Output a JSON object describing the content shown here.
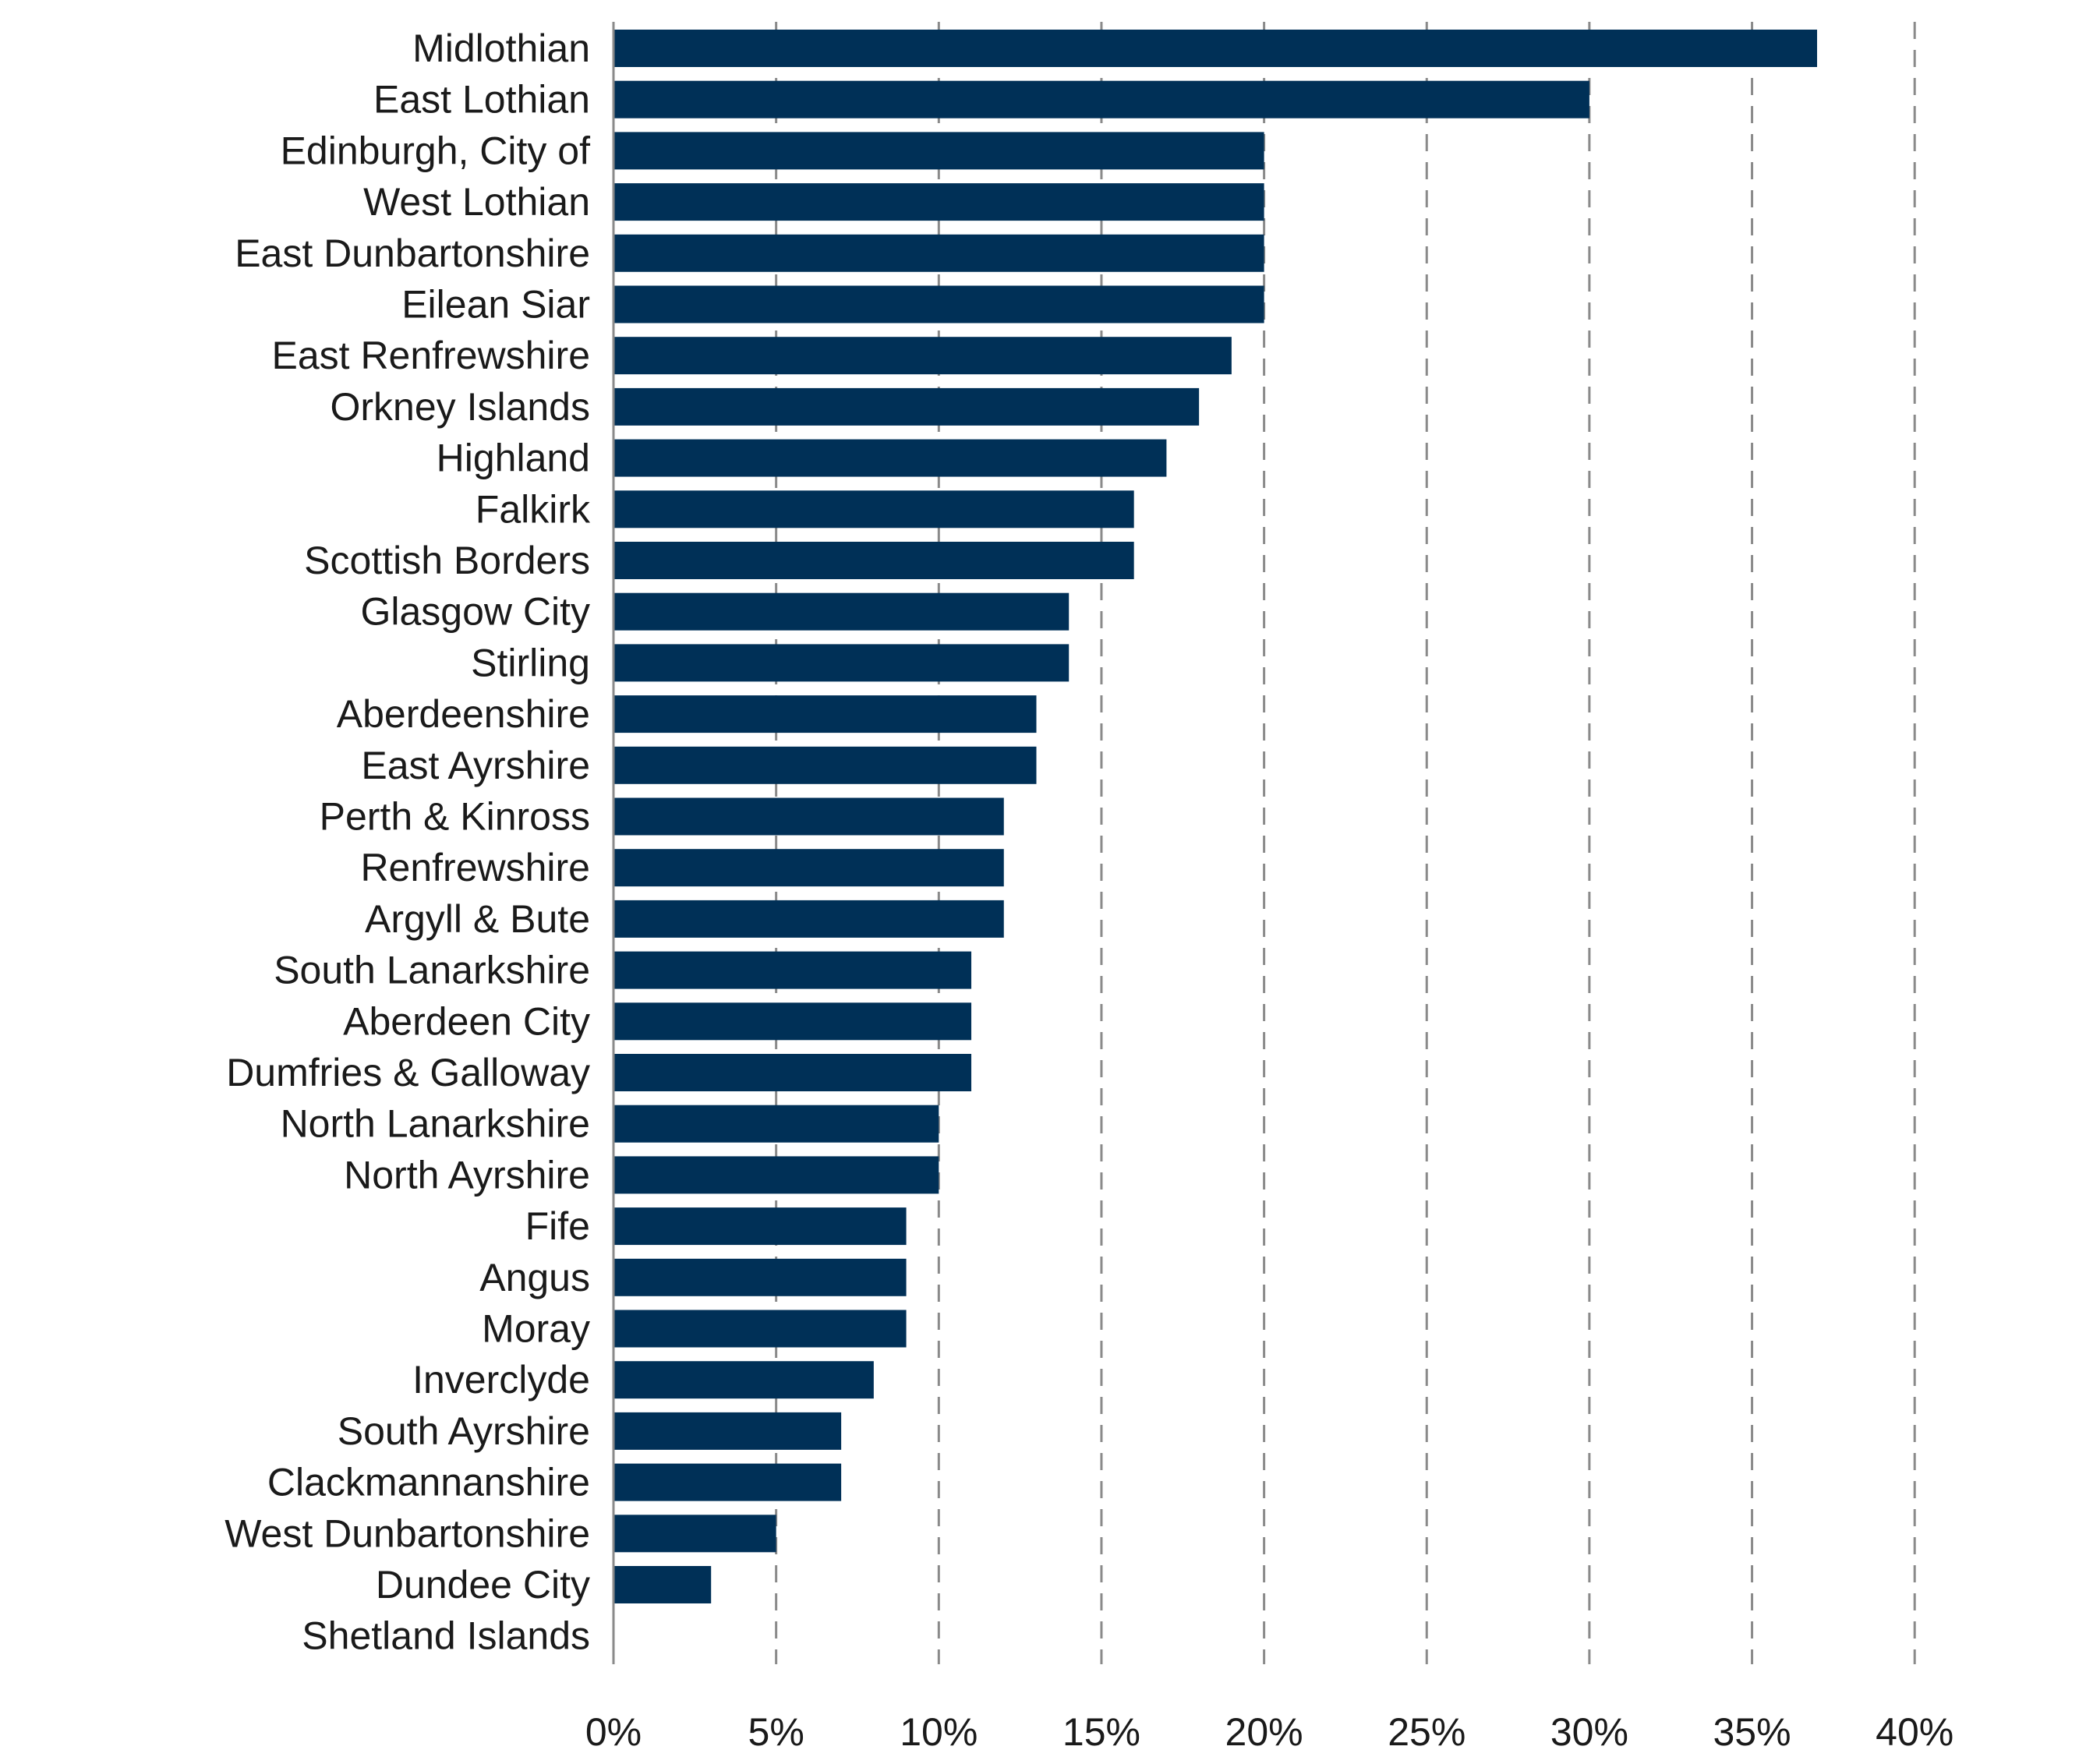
{
  "colors": {
    "bar": "#003057",
    "grid": "#8a8a8a",
    "text": "#1a1a1a"
  },
  "chart_data": {
    "type": "bar",
    "orientation": "horizontal",
    "title": "",
    "xlabel": "",
    "ylabel": "",
    "xlim": [
      0,
      40
    ],
    "unit": "%",
    "grid": true,
    "grid_style": "dashed vertical",
    "legend": "none",
    "x_ticks": [
      0,
      5,
      10,
      15,
      20,
      25,
      30,
      35,
      40
    ],
    "x_tick_labels": [
      "0%",
      "5%",
      "10%",
      "15%",
      "20%",
      "25%",
      "30%",
      "35%",
      "40%"
    ],
    "categories": [
      "Midlothian",
      "East Lothian",
      "Edinburgh, City of",
      "West Lothian",
      "East Dunbartonshire",
      "Eilean Siar",
      "East Renfrewshire",
      "Orkney Islands",
      "Highland",
      "Falkirk",
      "Scottish Borders",
      "Glasgow City",
      "Stirling",
      "Aberdeenshire",
      "East Ayrshire",
      "Perth & Kinross",
      "Renfrewshire",
      "Argyll & Bute",
      "South Lanarkshire",
      "Aberdeen City",
      "Dumfries & Galloway",
      "North Lanarkshire",
      "North Ayrshire",
      "Fife",
      "Angus",
      "Moray",
      "Inverclyde",
      "South Ayrshire",
      "Clackmannanshire",
      "West Dunbartonshire",
      "Dundee City",
      "Shetland Islands"
    ],
    "values": [
      37,
      30,
      20,
      20,
      20,
      20,
      19,
      18,
      17,
      16,
      16,
      14,
      14,
      13,
      13,
      12,
      12,
      12,
      11,
      11,
      11,
      10,
      10,
      9,
      9,
      9,
      8,
      7,
      7,
      5,
      3,
      0
    ]
  }
}
